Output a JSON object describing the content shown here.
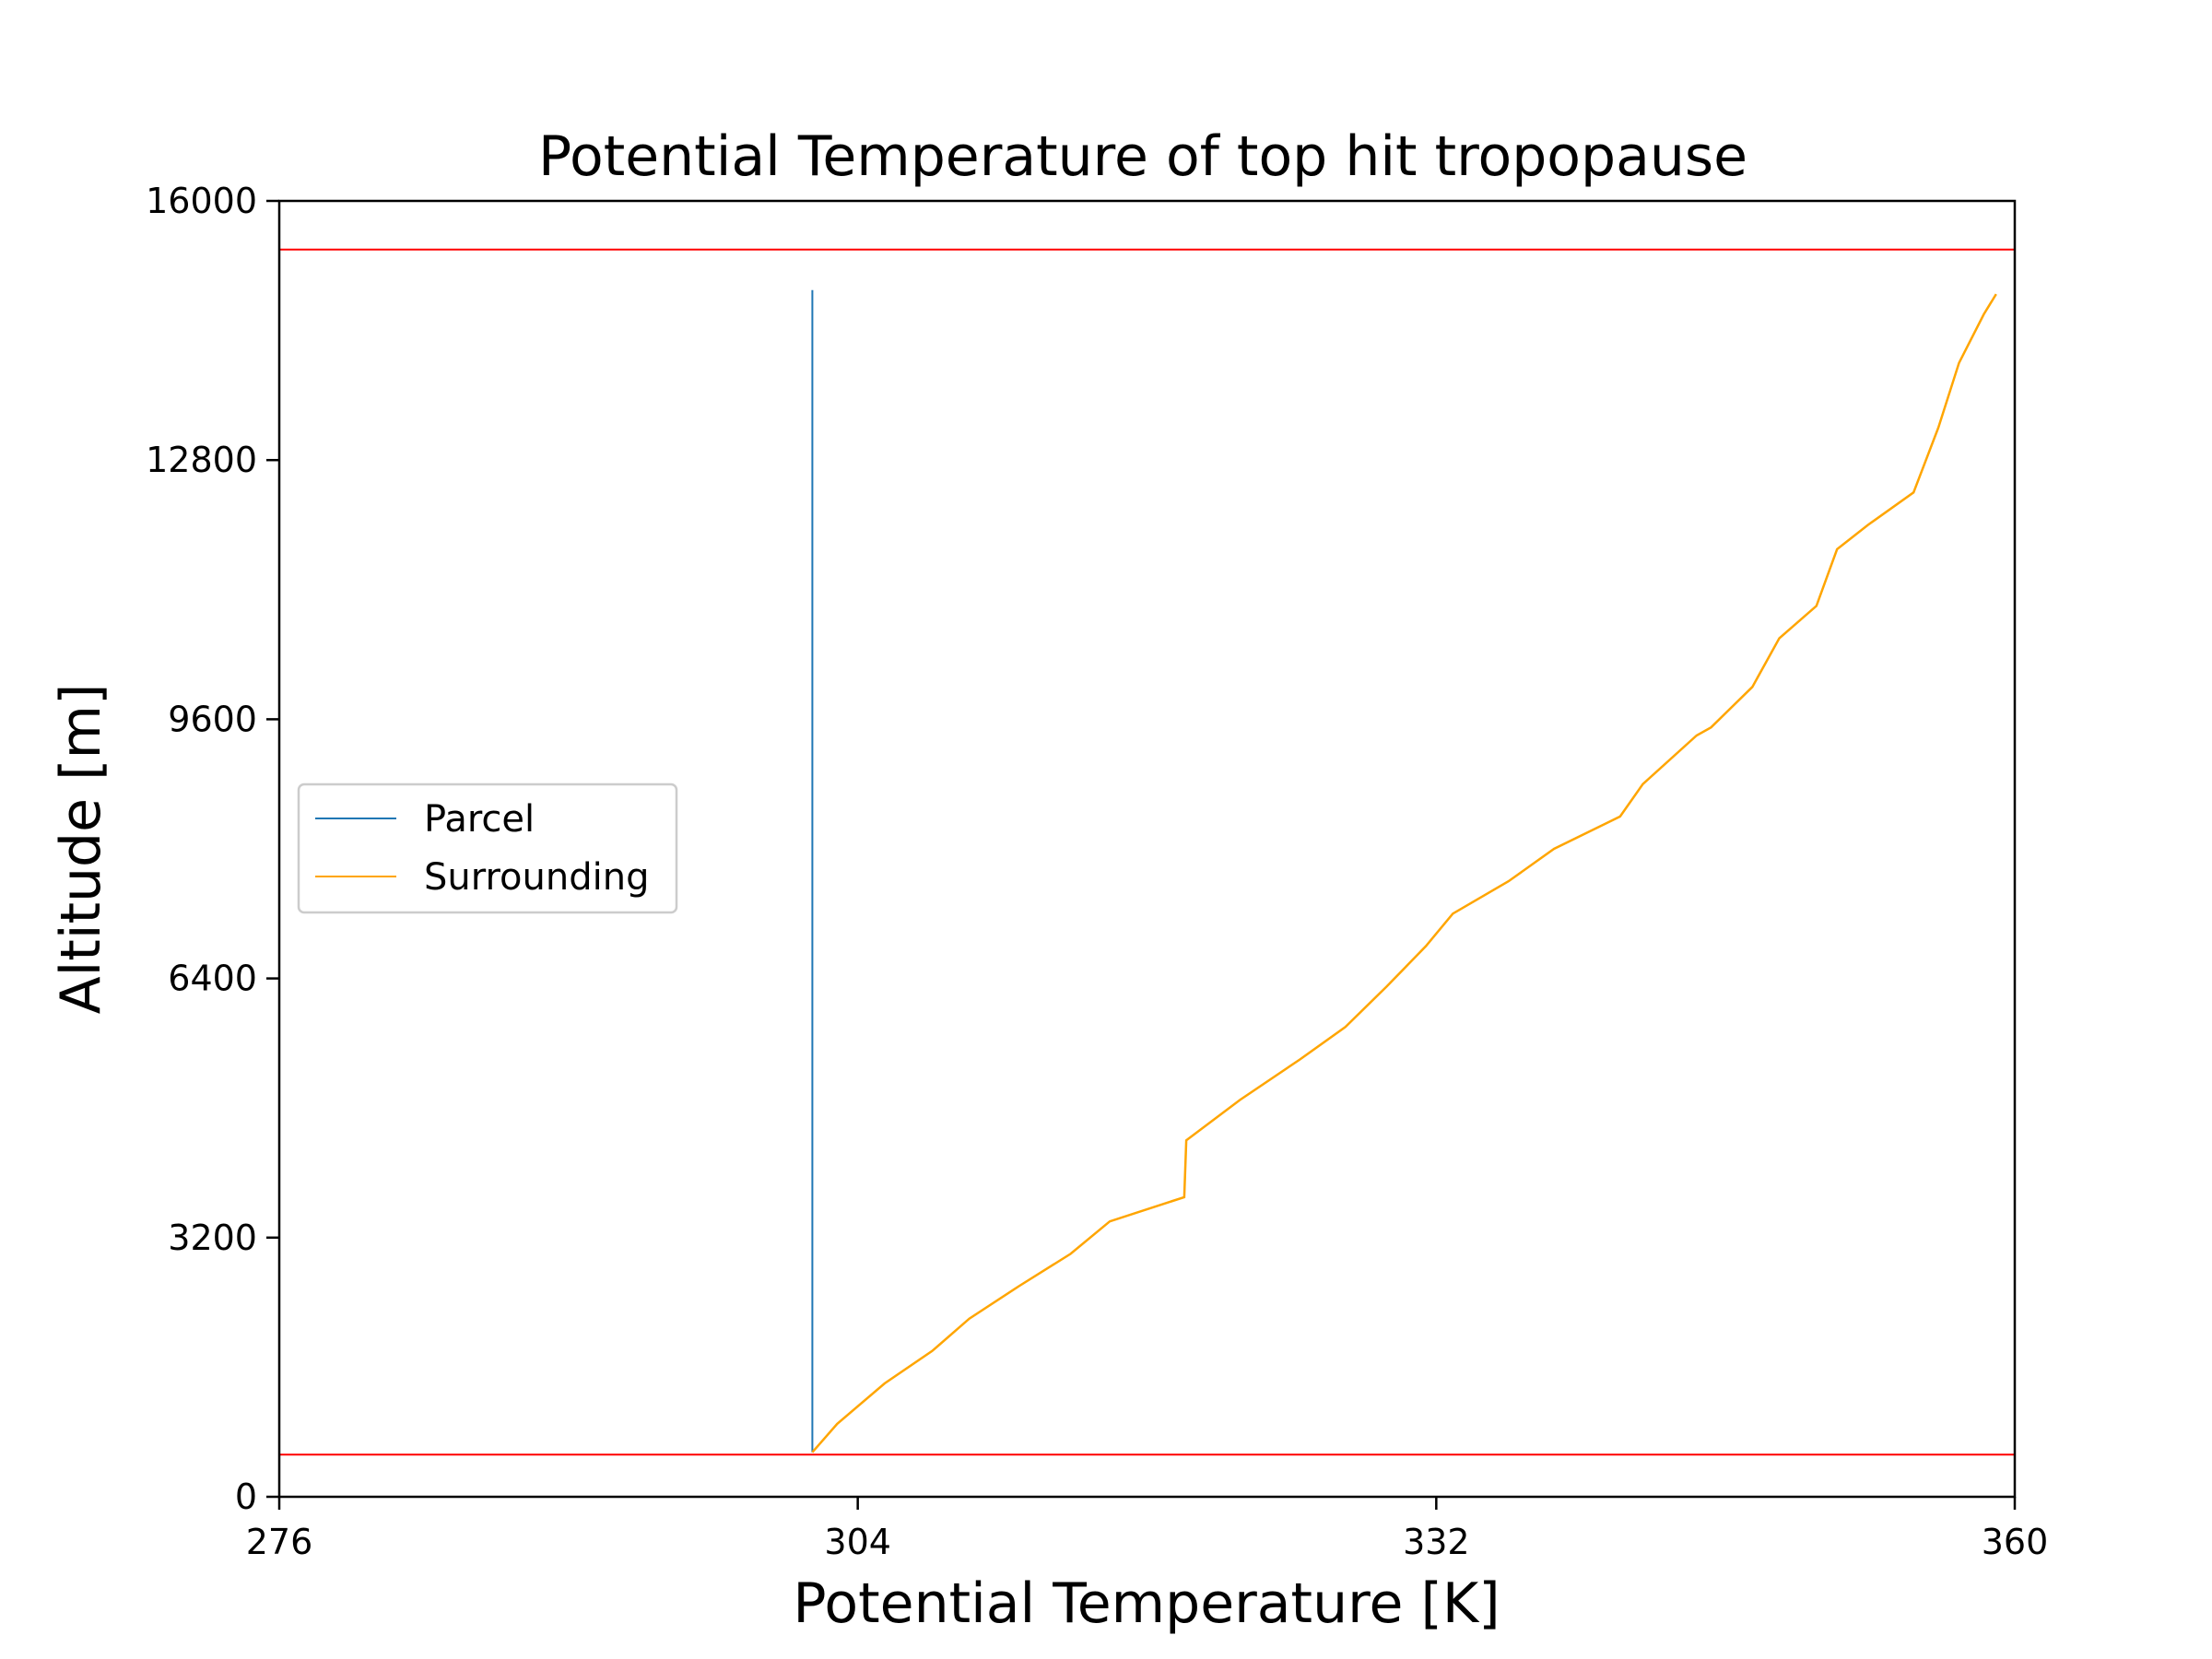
{
  "chart_data": {
    "type": "line",
    "title": "Potential Temperature of top hit tropopause",
    "xlabel": "Potential Temperature [K]",
    "ylabel": "Altitude [m]",
    "xlim": [
      276,
      360
    ],
    "ylim": [
      0,
      16000
    ],
    "xticks": [
      "276",
      "304",
      "332",
      "360"
    ],
    "yticks": [
      "0",
      "3200",
      "6400",
      "9600",
      "12800",
      "16000"
    ],
    "grid": false,
    "legend": {
      "placement": "center-left"
    },
    "hlines": [
      {
        "y": 15400,
        "color": "#ff0000"
      },
      {
        "y": 520,
        "color": "#ff0000"
      }
    ],
    "series": [
      {
        "name": "Parcel",
        "color": "#1f77b4",
        "x": [
          301.8,
          301.8
        ],
        "y": [
          550,
          14900
        ]
      },
      {
        "name": "Surrounding",
        "color": "#ffa500",
        "x": [
          301.8,
          303.0,
          305.3,
          307.6,
          309.4,
          311.8,
          314.3,
          316.2,
          319.8,
          319.9,
          322.5,
          325.4,
          327.6,
          329.6,
          331.5,
          332.8,
          335.5,
          337.7,
          340.9,
          342.0,
          344.6,
          345.3,
          347.3,
          348.6,
          350.4,
          351.4,
          352.9,
          355.1,
          356.3,
          357.3,
          358.5,
          359.1
        ],
        "y": [
          550,
          900,
          1400,
          1800,
          2200,
          2600,
          3000,
          3400,
          3700,
          4400,
          4900,
          5400,
          5800,
          6300,
          6800,
          7200,
          7600,
          8000,
          8400,
          8800,
          9400,
          9500,
          10000,
          10600,
          11000,
          11700,
          12000,
          12400,
          13200,
          14000,
          14600,
          14850
        ]
      }
    ]
  }
}
